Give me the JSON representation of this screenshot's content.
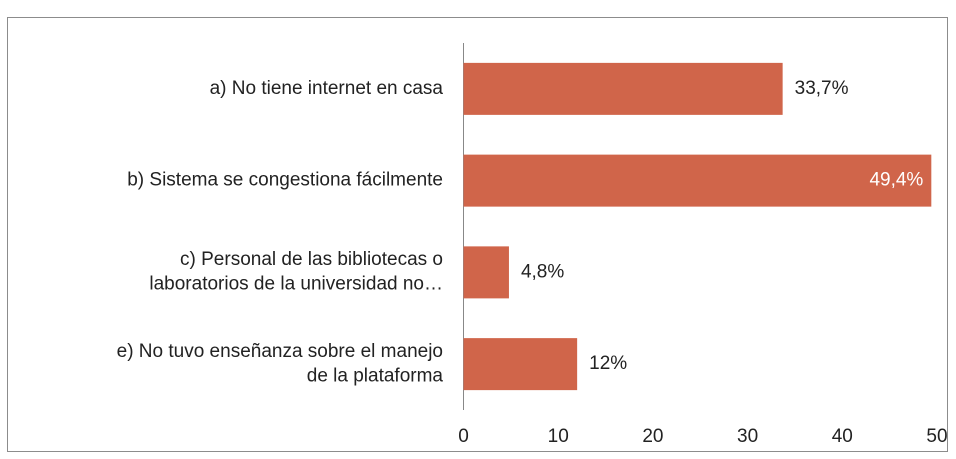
{
  "chart_data": {
    "type": "barh",
    "categories": [
      "a) No tiene internet en casa",
      "b) Sistema se congestiona fácilmente",
      "c) Personal de las bibliotecas o\nlaboratorios de la universidad no…",
      "e) No tuvo enseñanza sobre el manejo\nde la plataforma"
    ],
    "values": [
      33.7,
      49.4,
      4.8,
      12
    ],
    "value_labels": [
      "33,7%",
      "49,4%",
      "4,8%",
      "12%"
    ],
    "color": "#d0654a",
    "xlim": [
      0,
      50
    ],
    "xticks": [
      0,
      10,
      20,
      30,
      40,
      50
    ],
    "grid": false
  }
}
